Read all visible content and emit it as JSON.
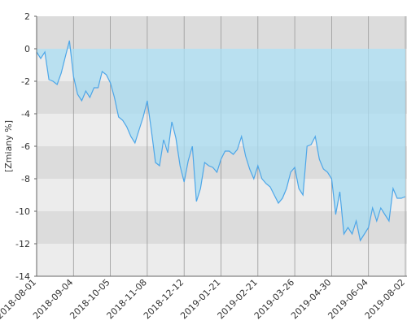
{
  "chart_data": {
    "type": "area",
    "y_label": "[Zmiany %]",
    "categories": [
      "2018-08-01",
      null,
      null,
      null,
      null,
      null,
      null,
      null,
      null,
      "2018-09-04",
      null,
      null,
      null,
      null,
      null,
      null,
      null,
      null,
      "2018-10-05",
      null,
      null,
      null,
      null,
      null,
      null,
      null,
      null,
      "2018-11-08",
      null,
      null,
      null,
      null,
      null,
      null,
      null,
      null,
      "2018-12-12",
      null,
      null,
      null,
      null,
      null,
      null,
      null,
      null,
      "2019-01-21",
      null,
      null,
      null,
      null,
      null,
      null,
      null,
      null,
      "2019-02-21",
      null,
      null,
      null,
      null,
      null,
      null,
      null,
      null,
      "2019-03-26",
      null,
      null,
      null,
      null,
      null,
      null,
      null,
      null,
      "2019-04-30",
      null,
      null,
      null,
      null,
      null,
      null,
      null,
      null,
      "2019-06-04",
      null,
      null,
      null,
      null,
      null,
      null,
      null,
      null,
      "2019-08-02"
    ],
    "values": [
      -0.2,
      -0.6,
      -0.2,
      -1.9,
      -2.0,
      -2.2,
      -1.5,
      -0.5,
      0.5,
      -1.7,
      -2.8,
      -3.2,
      -2.6,
      -3.0,
      -2.4,
      -2.4,
      -1.4,
      -1.6,
      -2.1,
      -3.0,
      -4.2,
      -4.4,
      -4.8,
      -5.4,
      -5.8,
      -5.0,
      -4.2,
      -3.2,
      -5.0,
      -7.0,
      -7.2,
      -5.6,
      -6.4,
      -4.5,
      -5.5,
      -7.2,
      -8.2,
      -6.9,
      -6.0,
      -9.4,
      -8.6,
      -7.0,
      -7.2,
      -7.3,
      -7.6,
      -6.8,
      -6.3,
      -6.3,
      -6.5,
      -6.2,
      -5.4,
      -6.6,
      -7.4,
      -8.0,
      -7.2,
      -8.0,
      -8.3,
      -8.5,
      -9.0,
      -9.5,
      -9.2,
      -8.6,
      -7.6,
      -7.3,
      -8.6,
      -9.0,
      -6.0,
      -5.9,
      -5.4,
      -6.8,
      -7.4,
      -7.6,
      -8.0,
      -10.2,
      -8.8,
      -11.4,
      -11.0,
      -11.4,
      -10.6,
      -11.8,
      -11.4,
      -11.0,
      -9.8,
      -10.6,
      -9.8,
      -10.2,
      -10.6,
      -8.6,
      -9.2,
      -9.2,
      -9.1
    ],
    "color": "#4da6e8",
    "fill_color": "#a8dcf2",
    "ylim": [
      -14,
      2
    ],
    "yticks": [
      -14,
      -12,
      -10,
      -8,
      -6,
      -4,
      -2,
      0,
      2
    ],
    "grid": true
  }
}
